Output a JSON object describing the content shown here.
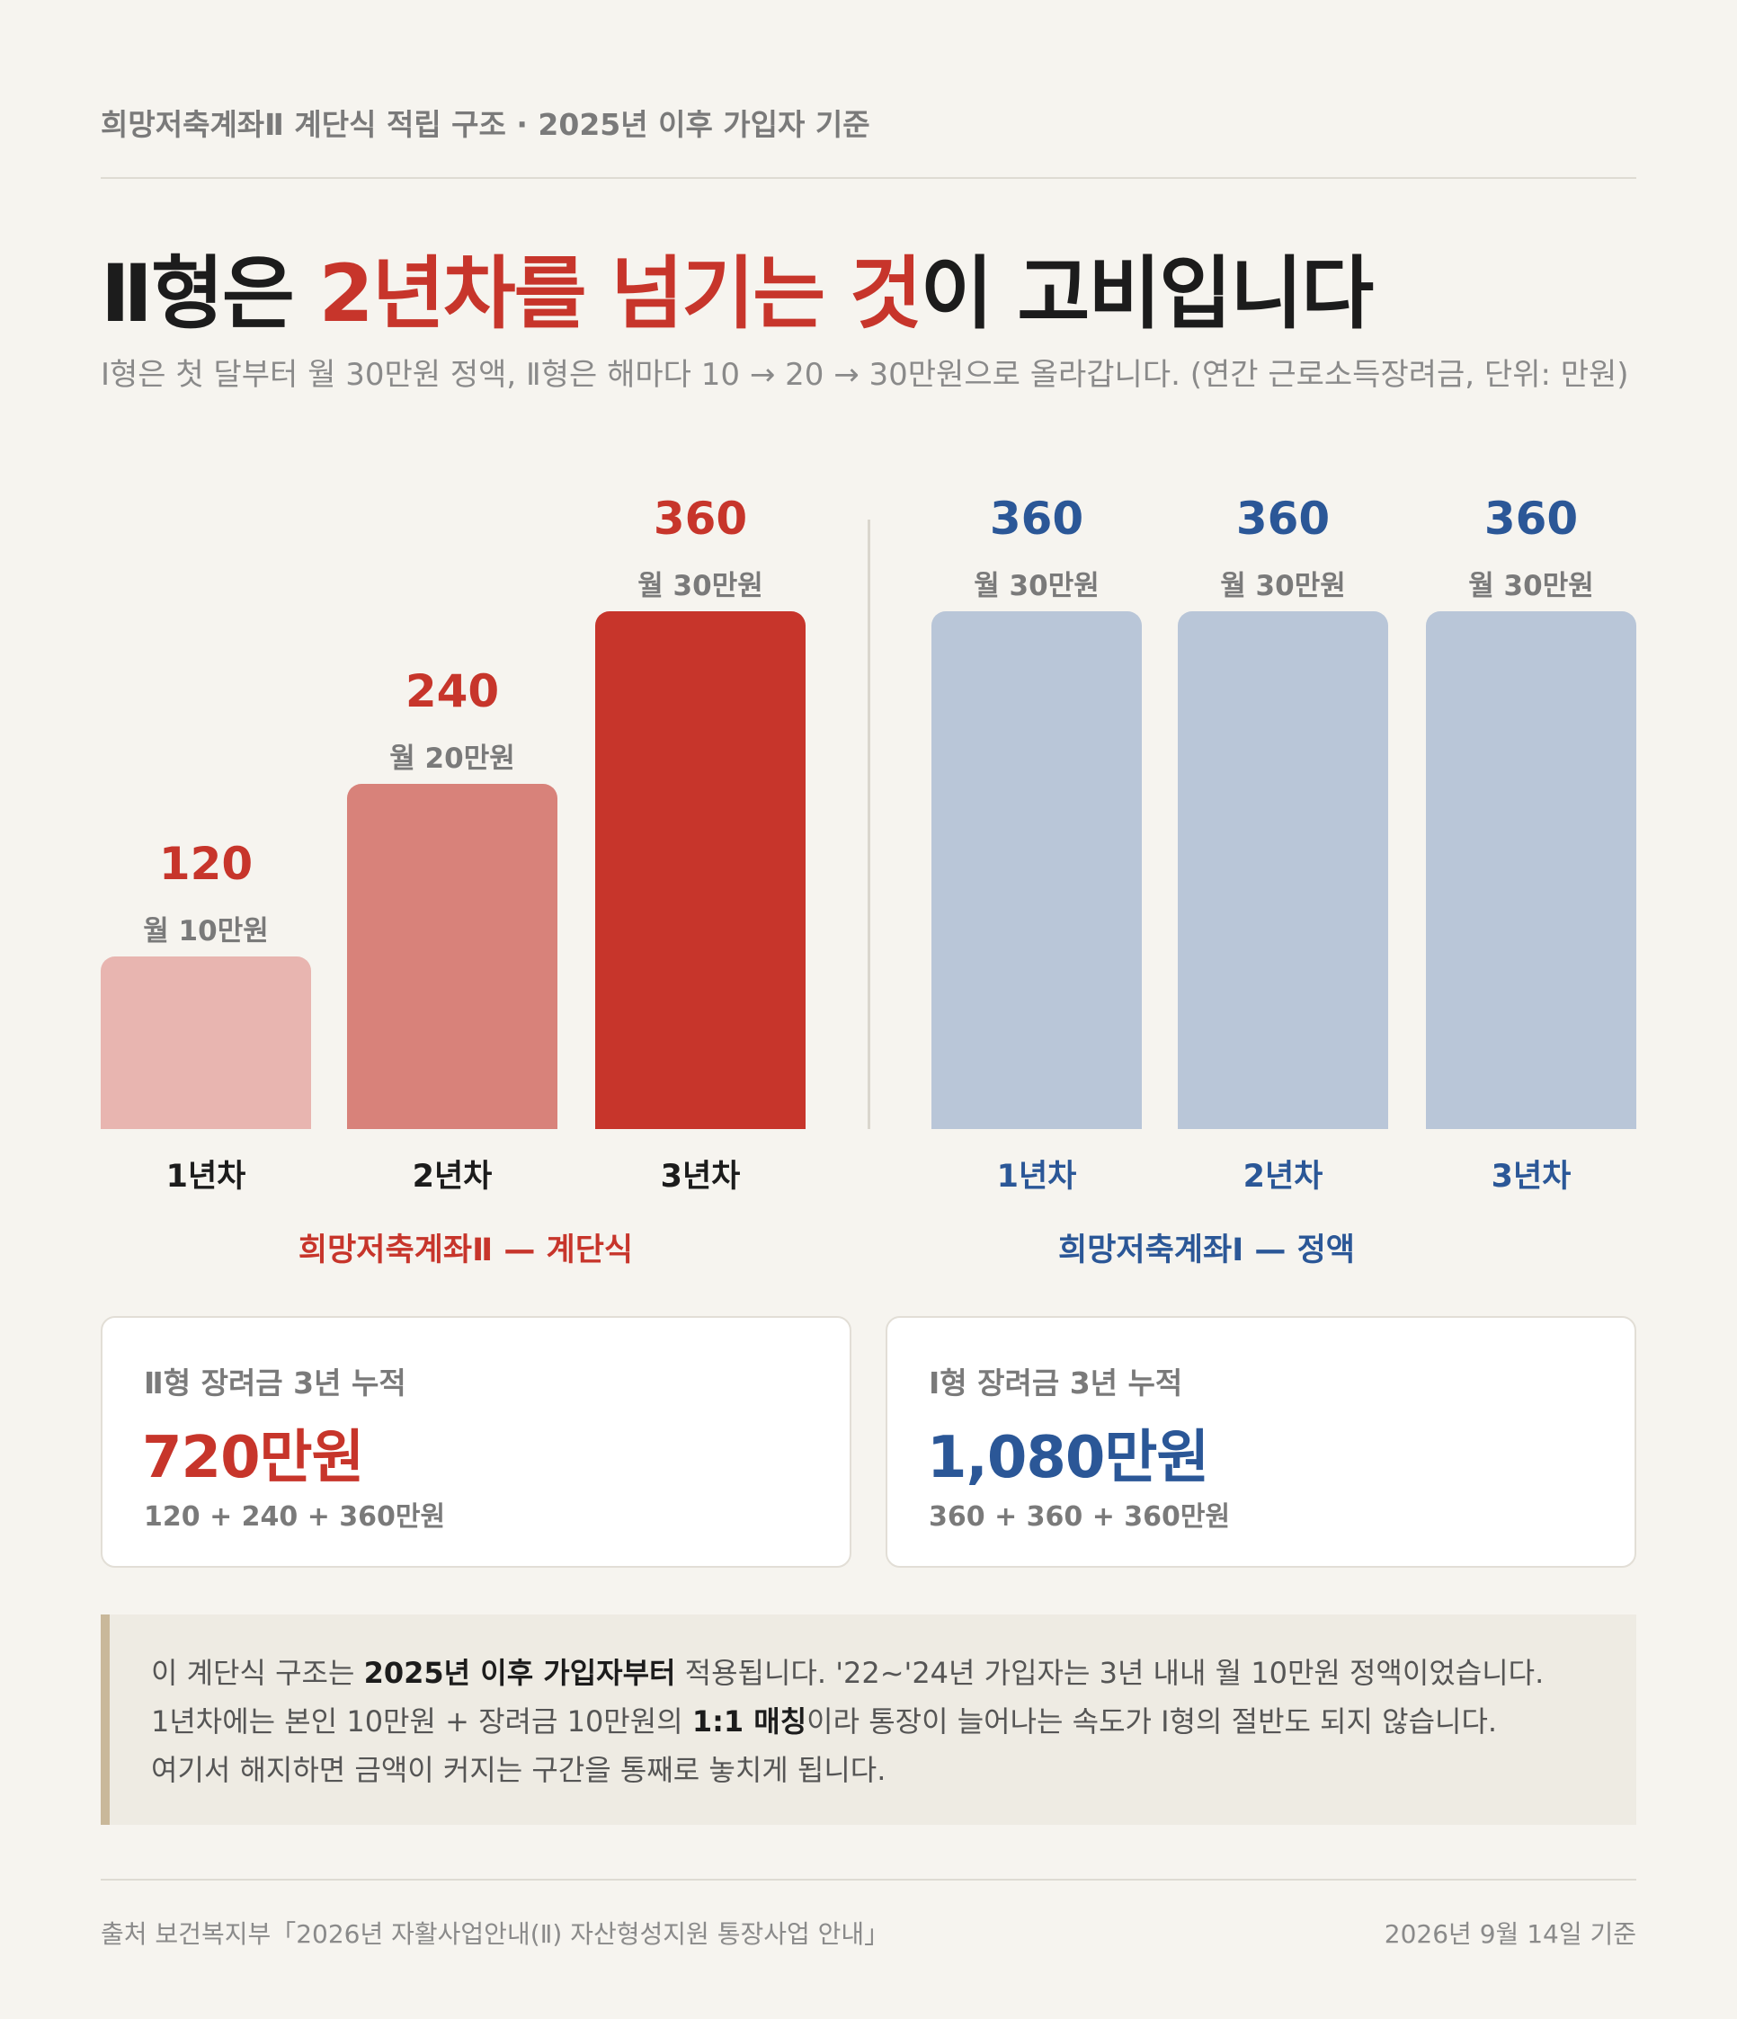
{
  "header": {
    "kicker": "희망저축계좌Ⅱ 계단식 적립 구조 · 2025년 이후 가입자 기준",
    "headline_pre": "Ⅱ형은 ",
    "headline_hl": "2년차를 넘기는 것",
    "headline_post": "이 고비입니다",
    "subtitle": "Ⅰ형은 첫 달부터 월 30만원 정액, Ⅱ형은 해마다 10 → 20 → 30만원으로 올라갑니다. (연간 근로소득장려금, 단위: 만원)"
  },
  "colors": {
    "type2_light": "#e8b5b0",
    "type2_mid": "#d8827a",
    "type2_dark": "#c7352b",
    "type1_bar": "#b9c6d8",
    "type1_text": "#2b5797",
    "type2_text": "#c7352b"
  },
  "chart_data": [
    {
      "type": "bar",
      "title": "희망저축계좌Ⅱ — 계단식",
      "categories": [
        "1년차",
        "2년차",
        "3년차"
      ],
      "values": [
        120,
        240,
        360
      ],
      "notes": [
        "월 10만원",
        "월 20만원",
        "월 30만원"
      ],
      "ylim": [
        0,
        360
      ]
    },
    {
      "type": "bar",
      "title": "희망저축계좌Ⅰ — 정액",
      "categories": [
        "1년차",
        "2년차",
        "3년차"
      ],
      "values": [
        360,
        360,
        360
      ],
      "notes": [
        "월 30만원",
        "월 30만원",
        "월 30만원"
      ],
      "ylim": [
        0,
        360
      ]
    }
  ],
  "cards": [
    {
      "label": "Ⅱ형 장려금 3년 누적",
      "value": "720만원",
      "formula": "120 + 240 + 360만원"
    },
    {
      "label": "Ⅰ형 장려금 3년 누적",
      "value": "1,080만원",
      "formula": "360 + 360 + 360만원"
    }
  ],
  "note": {
    "line1_pre": "이 계단식 구조는 ",
    "line1_bold": "2025년 이후 가입자부터",
    "line1_post": " 적용됩니다. '22~'24년 가입자는 3년 내내 월 10만원 정액이었습니다.",
    "line2_pre": "1년차에는 본인 10만원 + 장려금 10만원의 ",
    "line2_bold": "1:1 매칭",
    "line2_post": "이라 통장이 늘어나는 속도가 Ⅰ형의 절반도 되지 않습니다.",
    "line3": "여기서 해지하면 금액이 커지는 구간을 통째로 놓치게 됩니다."
  },
  "footer": {
    "source": "출처 보건복지부「2026년 자활사업안내(Ⅱ) 자산형성지원 통장사업 안내」",
    "date": "2026년 9월 14일 기준"
  }
}
